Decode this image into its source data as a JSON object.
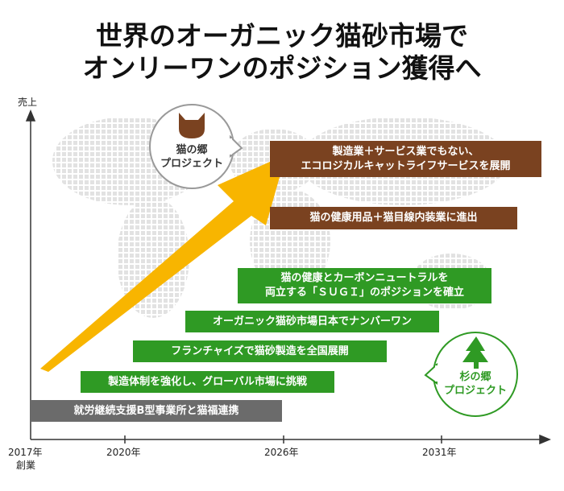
{
  "title": {
    "lines": [
      "世界のオーガニック猫砂市場で",
      "オンリーワンのポジション獲得へ"
    ]
  },
  "axis": {
    "y_label": "売上",
    "x_ticks": [
      "2017年",
      "2020年",
      "2026年",
      "2031年"
    ],
    "founding_note": "創業"
  },
  "bubbles": [
    {
      "lines": [
        "猫の郷",
        "プロジェクト"
      ]
    },
    {
      "lines": [
        "杉の郷",
        "プロジェクト"
      ]
    }
  ],
  "milestones": [
    {
      "lines": [
        "就労継続支援B型事業所と猫福連携"
      ]
    },
    {
      "lines": [
        "製造体制を強化し、グローバル市場に挑戦"
      ]
    },
    {
      "lines": [
        "フランチャイズで猫砂製造を全国展開"
      ]
    },
    {
      "lines": [
        "オーガニック猫砂市場日本でナンバーワン"
      ]
    },
    {
      "lines": [
        "猫の健康とカーボンニュートラルを",
        "両立する「ＳＵＧＩ」のポジションを確立"
      ]
    },
    {
      "lines": [
        "猫の健康用品＋猫目線内装業に進出"
      ]
    },
    {
      "lines": [
        "製造業＋サービス業でもない、",
        "エコロジカルキャットライフサービスを展開"
      ]
    }
  ]
}
